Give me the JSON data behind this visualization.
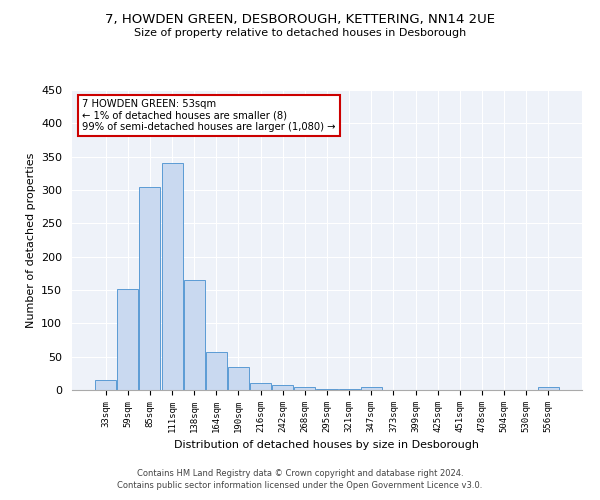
{
  "title1": "7, HOWDEN GREEN, DESBOROUGH, KETTERING, NN14 2UE",
  "title2": "Size of property relative to detached houses in Desborough",
  "xlabel": "Distribution of detached houses by size in Desborough",
  "ylabel": "Number of detached properties",
  "bar_labels": [
    "33sqm",
    "59sqm",
    "85sqm",
    "111sqm",
    "138sqm",
    "164sqm",
    "190sqm",
    "216sqm",
    "242sqm",
    "268sqm",
    "295sqm",
    "321sqm",
    "347sqm",
    "373sqm",
    "399sqm",
    "425sqm",
    "451sqm",
    "478sqm",
    "504sqm",
    "530sqm",
    "556sqm"
  ],
  "bar_values": [
    15,
    152,
    305,
    340,
    165,
    57,
    35,
    10,
    7,
    5,
    2,
    2,
    5,
    0,
    0,
    0,
    0,
    0,
    0,
    0,
    4
  ],
  "bar_color": "#c9d9f0",
  "bar_edge_color": "#5b9bd5",
  "annotation_title": "7 HOWDEN GREEN: 53sqm",
  "annotation_line1": "← 1% of detached houses are smaller (8)",
  "annotation_line2": "99% of semi-detached houses are larger (1,080) →",
  "annotation_box_color": "#ffffff",
  "annotation_box_edge": "#cc0000",
  "ylim": [
    0,
    450
  ],
  "yticks": [
    0,
    50,
    100,
    150,
    200,
    250,
    300,
    350,
    400,
    450
  ],
  "background_color": "#eef2f9",
  "footer1": "Contains HM Land Registry data © Crown copyright and database right 2024.",
  "footer2": "Contains public sector information licensed under the Open Government Licence v3.0."
}
